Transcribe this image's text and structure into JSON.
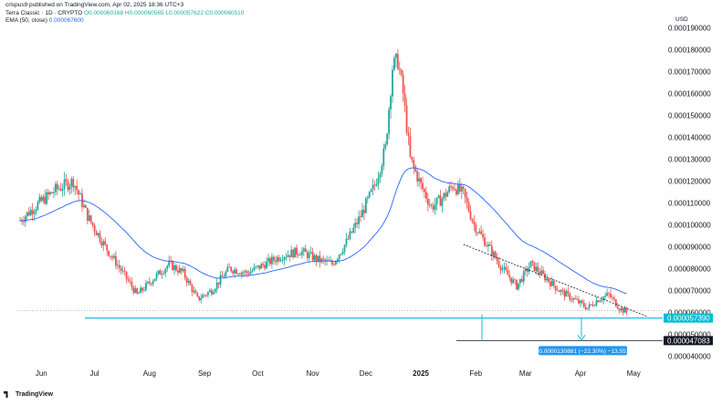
{
  "header": {
    "published": "crispus9 published on TradingView.com, Apr 02, 2025 18:36 UTC+3",
    "symbol": "Terra Classic · 1D · CRYPTO",
    "ohlc": "O0.000060168 H0.000060565 L0.000057622 C0.000060510",
    "ema": "EMA (50, close)",
    "ema_value": "0.000067600"
  },
  "currency": "USD",
  "branding": "TradingView",
  "colors": {
    "up": "#26a69a",
    "down": "#ef5350",
    "ema": "#2962ff",
    "support": "#00bcd4",
    "label_bg": "#2196f3"
  },
  "labels": {
    "current_price": "0.000057390",
    "target_price": "0.000047083",
    "measure": "−0.0000130881 (−22.30%) −13,551"
  },
  "chart_data": {
    "type": "candlestick",
    "y_ticks": [
      "0.000040000",
      "0.000050000",
      "0.000060000",
      "0.000070000",
      "0.000080000",
      "0.000090000",
      "0.000100000",
      "0.000110000",
      "0.000120000",
      "0.000130000",
      "0.000140000",
      "0.000150000",
      "0.000160000",
      "0.000170000",
      "0.000180000",
      "0.000190000"
    ],
    "x_ticks": [
      "Jun",
      "Jul",
      "Aug",
      "Sep",
      "Oct",
      "Nov",
      "Dec",
      "2025",
      "Feb",
      "Mar",
      "Apr",
      "May"
    ],
    "ylim": [
      3.6e-05,
      0.000196
    ],
    "price_path": [
      [
        0,
        0.000102
      ],
      [
        8,
        0.000108
      ],
      [
        20,
        0.000116
      ],
      [
        30,
        0.00012
      ],
      [
        38,
        0.000104
      ],
      [
        48,
        9e-05
      ],
      [
        58,
        7.8e-05
      ],
      [
        66,
        6.8e-05
      ],
      [
        76,
        7.6e-05
      ],
      [
        84,
        8.2e-05
      ],
      [
        92,
        7.8e-05
      ],
      [
        100,
        6.6e-05
      ],
      [
        108,
        7e-05
      ],
      [
        118,
        8e-05
      ],
      [
        128,
        7.8e-05
      ],
      [
        138,
        8.2e-05
      ],
      [
        148,
        8.6e-05
      ],
      [
        158,
        8.8e-05
      ],
      [
        168,
        8.4e-05
      ],
      [
        176,
        8.2e-05
      ],
      [
        184,
        9.2e-05
      ],
      [
        192,
        0.000104
      ],
      [
        200,
        0.000118
      ],
      [
        206,
        0.000135
      ],
      [
        210,
        0.000172
      ],
      [
        213,
        0.000175
      ],
      [
        216,
        0.00016
      ],
      [
        220,
        0.00013
      ],
      [
        226,
        0.000118
      ],
      [
        232,
        0.000108
      ],
      [
        238,
        0.000112
      ],
      [
        244,
        0.000118
      ],
      [
        250,
        0.000114
      ],
      [
        256,
        0.0001
      ],
      [
        264,
        9e-05
      ],
      [
        272,
        8e-05
      ],
      [
        280,
        7.2e-05
      ],
      [
        288,
        8.2e-05
      ],
      [
        296,
        7.6e-05
      ],
      [
        304,
        7e-05
      ],
      [
        312,
        6.6e-05
      ],
      [
        320,
        6.2e-05
      ],
      [
        326,
        6.6e-05
      ],
      [
        332,
        6.8e-05
      ],
      [
        338,
        6.2e-05
      ],
      [
        342,
        6e-05
      ]
    ],
    "support_level": 5.739e-05,
    "target_level": 4.7083e-05,
    "trendline": [
      [
        250,
        9.1e-05
      ],
      [
        354,
        5.8e-05
      ]
    ],
    "ema_period": 50
  }
}
